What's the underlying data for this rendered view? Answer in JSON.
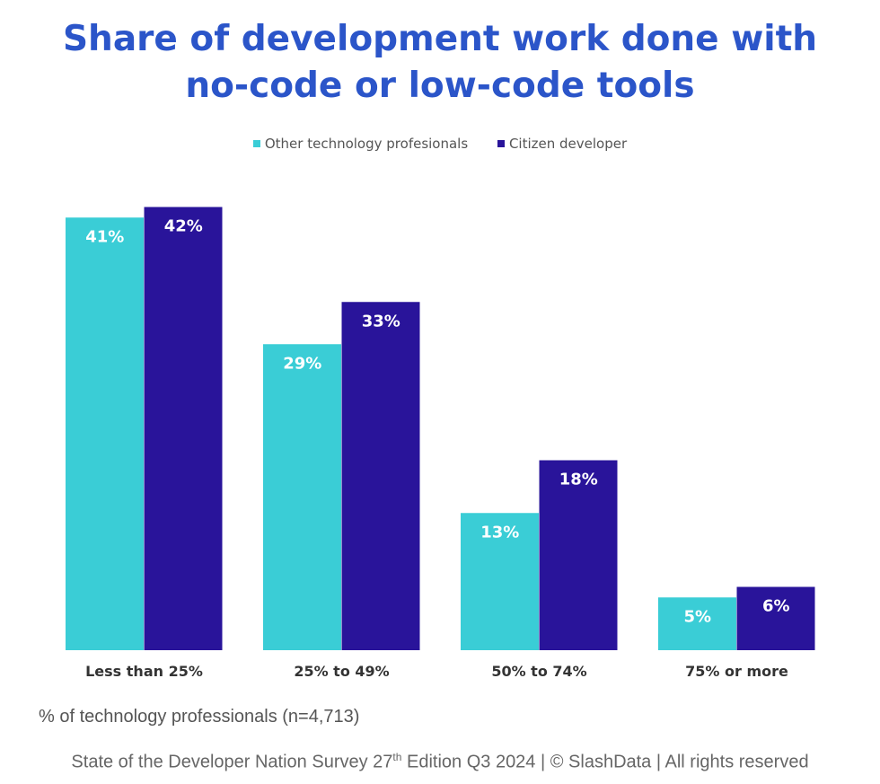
{
  "chart_data": {
    "type": "bar",
    "title_line1": "Share of development work done with",
    "title_line2": "no-code or low-code tools",
    "categories": [
      "Less than 25%",
      "25% to 49%",
      "50% to 74%",
      "75% or more"
    ],
    "series": [
      {
        "name": "Other technology profesionals",
        "values": [
          41,
          29,
          13,
          5
        ],
        "color": "#3ACDD6"
      },
      {
        "name": "Citizen developer",
        "values": [
          42,
          33,
          18,
          6
        ],
        "color": "#29149A"
      }
    ],
    "value_suffix": "%",
    "xlabel": "",
    "ylabel": "",
    "ylim": [
      0,
      45
    ],
    "grid": false,
    "legend_position": "top-center"
  },
  "note": "% of technology professionals (n=4,713)",
  "footer": {
    "part1": "State of the Developer Nation Survey 27",
    "sup": "th",
    "part2": " Edition Q3 2024 | © SlashData | All rights reserved"
  }
}
